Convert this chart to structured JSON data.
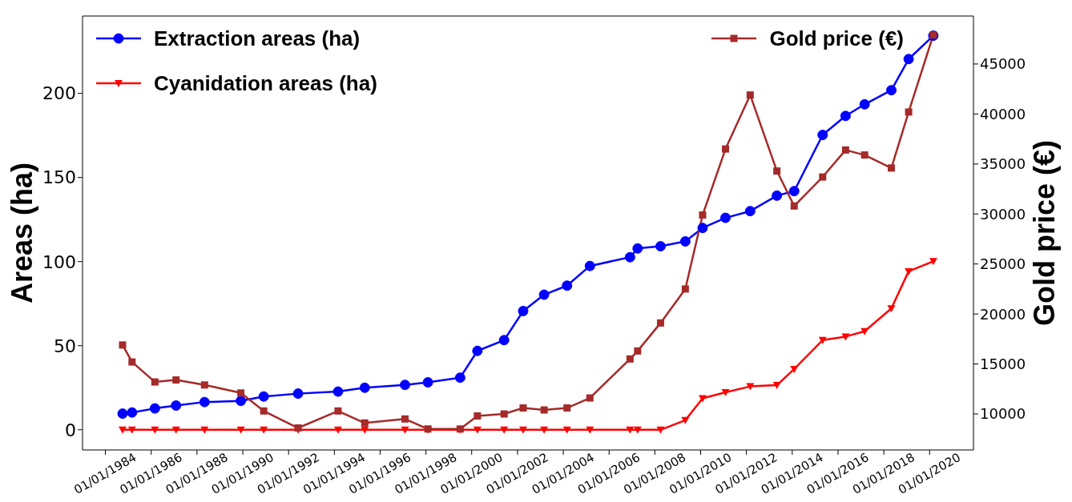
{
  "chart_data": {
    "type": "line",
    "ylabel": "Areas (ha)",
    "y2label": "Gold price (€)",
    "x": [
      "1984-10",
      "1985-03",
      "1986-03",
      "1987-02",
      "1988-05",
      "1989-12",
      "1990-12",
      "1992-06",
      "1994-03",
      "1995-05",
      "1997-02",
      "1998-02",
      "1999-07",
      "2000-04",
      "2001-06",
      "2002-04",
      "2003-03",
      "2004-03",
      "2005-03",
      "2006-12",
      "2007-04",
      "2008-04",
      "2009-05",
      "2010-02",
      "2011-02",
      "2012-03",
      "2013-05",
      "2014-02",
      "2015-05",
      "2016-05",
      "2017-03",
      "2018-05",
      "2019-02",
      "2020-03"
    ],
    "series": [
      {
        "name": "Extraction areas (ha)",
        "color": "#0000ff",
        "marker": "circle",
        "values": [
          9.6,
          10.3,
          12.7,
          14.4,
          16.5,
          17.2,
          19.8,
          21.5,
          22.7,
          25,
          26.7,
          28.2,
          31,
          46.9,
          53.3,
          70.6,
          80.3,
          85.7,
          97.4,
          102.6,
          107.8,
          109.1,
          112,
          120,
          126,
          130,
          139.2,
          141.9,
          175.3,
          186.6,
          193.5,
          201.9,
          220.4,
          234.3
        ]
      },
      {
        "name": "Cyanidation areas (ha)",
        "color": "#ff0000",
        "marker": "triangle",
        "values": [
          0,
          0,
          0,
          0,
          0,
          0,
          0,
          0,
          0,
          0,
          0,
          0,
          0,
          0,
          0,
          0,
          0,
          0,
          0,
          0,
          0,
          0,
          5.7,
          18.7,
          22.3,
          25.8,
          26.5,
          36.1,
          53.3,
          55.4,
          58.6,
          72.1,
          94.2,
          100.2
        ]
      },
      {
        "name": "Gold price (€)",
        "color": "#a52a2a",
        "marker": "square",
        "axis": "y2",
        "values": [
          16900,
          15200,
          13200,
          13400,
          12900,
          12100,
          10300,
          8600,
          10300,
          9100,
          9500,
          8500,
          8500,
          9800,
          10000,
          10600,
          10400,
          10600,
          11600,
          15500,
          16300,
          19100,
          22500,
          29900,
          36500,
          41900,
          34300,
          30800,
          33700,
          36400,
          35900,
          34600,
          40200,
          47900
        ]
      }
    ],
    "xlim": [
      "1983-01-01",
      "2021-12-01"
    ],
    "xticks": [
      {
        "value": "1984-01-01",
        "label": "01/01/1984"
      },
      {
        "value": "1986-01-01",
        "label": "01/01/1986"
      },
      {
        "value": "1988-01-01",
        "label": "01/01/1988"
      },
      {
        "value": "1990-01-01",
        "label": "01/01/1990"
      },
      {
        "value": "1992-01-01",
        "label": "01/01/1992"
      },
      {
        "value": "1994-01-01",
        "label": "01/01/1994"
      },
      {
        "value": "1996-01-01",
        "label": "01/01/1996"
      },
      {
        "value": "1998-01-01",
        "label": "01/01/1998"
      },
      {
        "value": "2000-01-01",
        "label": "01/01/2000"
      },
      {
        "value": "2002-01-01",
        "label": "01/01/2002"
      },
      {
        "value": "2004-01-01",
        "label": "01/01/2004"
      },
      {
        "value": "2006-01-01",
        "label": "01/01/2006"
      },
      {
        "value": "2008-01-01",
        "label": "01/01/2008"
      },
      {
        "value": "2010-01-01",
        "label": "01/01/2010"
      },
      {
        "value": "2012-01-01",
        "label": "01/01/2012"
      },
      {
        "value": "2014-01-01",
        "label": "01/01/2014"
      },
      {
        "value": "2016-01-01",
        "label": "01/01/2016"
      },
      {
        "value": "2018-01-01",
        "label": "01/01/2018"
      },
      {
        "value": "2020-01-01",
        "label": "01/01/2020"
      }
    ],
    "ylim": [
      -12,
      246
    ],
    "yticks": [
      0,
      50,
      100,
      150,
      200
    ],
    "y2lim": [
      6400,
      49800
    ],
    "y2ticks": [
      10000,
      15000,
      20000,
      25000,
      30000,
      35000,
      40000,
      45000
    ],
    "legend": "top",
    "grid": false,
    "line_style": "solid"
  }
}
